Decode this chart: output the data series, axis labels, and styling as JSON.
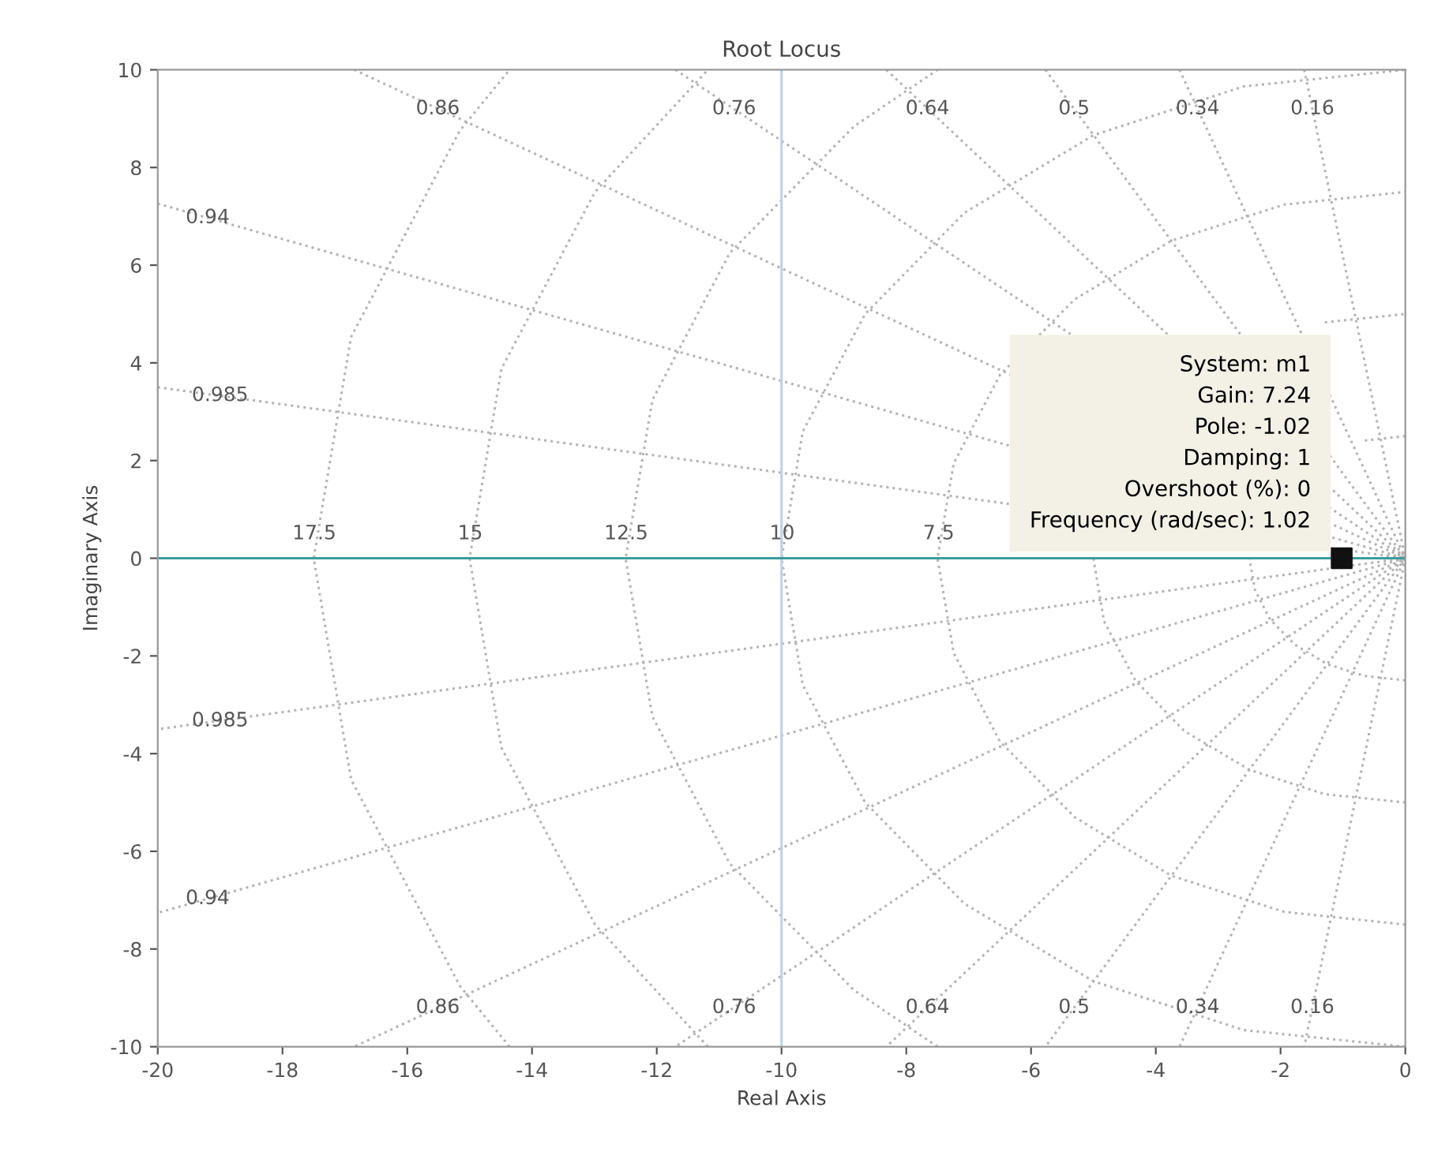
{
  "chart_data": {
    "type": "line",
    "title": "Root Locus",
    "xlabel": "Real Axis",
    "ylabel": "Imaginary Axis",
    "xlim": [
      -20,
      0
    ],
    "xticks": [
      -20,
      -18,
      -16,
      -14,
      -12,
      -10,
      -8,
      -6,
      -4,
      -2,
      0
    ],
    "ylim": [
      -10,
      10
    ],
    "yticks": [
      -10,
      -8,
      -6,
      -4,
      -2,
      0,
      2,
      4,
      6,
      8,
      10
    ],
    "grid": false,
    "legend": false,
    "series": [
      {
        "color": "#b4b4b4",
        "line_style": "dotted",
        "x": [
          -1.62,
          0,
          -1.62
        ],
        "values": [
          10,
          0,
          -10
        ]
      },
      {
        "color": "#b4b4b4",
        "line_style": "dotted",
        "x": [
          -3.62,
          0,
          -3.62
        ],
        "values": [
          10,
          0,
          -10
        ]
      },
      {
        "color": "#b4b4b4",
        "line_style": "dotted",
        "x": [
          -5.77,
          0,
          -5.77
        ],
        "values": [
          10,
          0,
          -10
        ]
      },
      {
        "color": "#b4b4b4",
        "line_style": "dotted",
        "x": [
          -8.32,
          0,
          -8.32
        ],
        "values": [
          10,
          0,
          -10
        ]
      },
      {
        "color": "#b4b4b4",
        "line_style": "dotted",
        "x": [
          -11.7,
          0,
          -11.7
        ],
        "values": [
          10,
          0,
          -10
        ]
      },
      {
        "color": "#b4b4b4",
        "line_style": "dotted",
        "x": [
          -16.85,
          0,
          -16.85
        ],
        "values": [
          10,
          0,
          -10
        ]
      },
      {
        "color": "#b4b4b4",
        "line_style": "dotted",
        "x": [
          -20,
          0,
          -20
        ],
        "values": [
          7.26,
          0,
          -7.26
        ]
      },
      {
        "color": "#b4b4b4",
        "line_style": "dotted",
        "x": [
          -20,
          0,
          -20
        ],
        "values": [
          3.5,
          0,
          -3.5
        ]
      },
      {
        "color": "#b4b4b4",
        "line_style": "dotted",
        "x": [
          0,
          -0.65,
          -1.25,
          -1.77,
          -2.17,
          -2.41,
          -2.5,
          -2.41,
          -2.17,
          -1.77,
          -1.25,
          -0.65,
          0
        ],
        "values": [
          -2.5,
          -2.41,
          -2.17,
          -1.77,
          -1.25,
          -0.65,
          0,
          null,
          null,
          null,
          null,
          2.41,
          2.5
        ]
      },
      {
        "color": "#b4b4b4",
        "line_style": "dotted",
        "x": [
          0,
          -1.29,
          -2.5,
          -3.54,
          -4.33,
          -4.83,
          -5,
          -4.83,
          -4.33,
          -3.54,
          -2.5,
          -1.29,
          0
        ],
        "values": [
          -5,
          -4.83,
          -4.33,
          -3.54,
          -2.5,
          -1.29,
          0,
          null,
          null,
          null,
          null,
          4.83,
          5
        ]
      },
      {
        "color": "#b4b4b4",
        "line_style": "dotted",
        "x": [
          0,
          -1.94,
          -3.75,
          -5.3,
          -6.5,
          -7.24,
          -7.5,
          -7.24,
          -6.5,
          -5.3,
          -3.75,
          -1.94,
          0
        ],
        "values": [
          -7.5,
          -7.24,
          -6.5,
          -5.3,
          -3.75,
          -1.94,
          0,
          1.94,
          3.75,
          5.3,
          6.5,
          7.24,
          7.5
        ]
      },
      {
        "color": "#b4b4b4",
        "line_style": "dotted",
        "x": [
          0,
          -2.59,
          -5,
          -7.07,
          -8.66,
          -9.66,
          -10,
          -9.66,
          -8.66,
          -7.07,
          -5,
          -2.59,
          0
        ],
        "values": [
          -10,
          -9.66,
          -8.66,
          -7.07,
          -5,
          -2.59,
          0,
          2.59,
          5,
          7.07,
          8.66,
          9.66,
          10
        ]
      },
      {
        "color": "#b4b4b4",
        "line_style": "dotted",
        "x": [
          -7.5,
          -8.84,
          -10.83,
          -12.07,
          -12.5,
          -12.07,
          -10.83,
          -8.84,
          -7.5
        ],
        "values": [
          -10,
          -8.84,
          -6.25,
          -3.24,
          0,
          3.24,
          6.25,
          8.84,
          10
        ]
      },
      {
        "color": "#b4b4b4",
        "line_style": "dotted",
        "x": [
          -11.18,
          -12.99,
          -14.49,
          -15,
          -14.49,
          -12.99,
          -11.18
        ],
        "values": [
          -10,
          -7.5,
          -3.88,
          0,
          3.88,
          7.5,
          10
        ]
      },
      {
        "color": "#b4b4b4",
        "line_style": "dotted",
        "x": [
          -14.36,
          -15.16,
          -16.9,
          -17.5,
          -16.9,
          -15.16,
          -14.36
        ],
        "values": [
          -10,
          -8.75,
          -4.53,
          0,
          4.53,
          8.75,
          10
        ]
      },
      {
        "color": "#b8d4ea",
        "line_style": "solid",
        "x": [
          -10,
          -10
        ],
        "values": [
          -10,
          10
        ]
      },
      {
        "color": "#3c9c9c",
        "line_style": "solid",
        "x": [
          -20,
          0
        ],
        "values": [
          0,
          0
        ]
      },
      {
        "type": "scatter",
        "color": "#111111",
        "marker": "square",
        "x": [
          -1.02
        ],
        "values": [
          0
        ]
      }
    ],
    "annotations": [
      {
        "text": "0.86",
        "x": -15.51,
        "y": 9.2
      },
      {
        "text": "0.76",
        "x": -10.76,
        "y": 9.2
      },
      {
        "text": "0.64",
        "x": -7.66,
        "y": 9.2
      },
      {
        "text": "0.5",
        "x": -5.31,
        "y": 9.2
      },
      {
        "text": "0.34",
        "x": -3.33,
        "y": 9.2
      },
      {
        "text": "0.16",
        "x": -1.49,
        "y": 9.2
      },
      {
        "text": "0.86",
        "x": -15.51,
        "y": -9.2
      },
      {
        "text": "0.76",
        "x": -10.76,
        "y": -9.2
      },
      {
        "text": "0.64",
        "x": -7.66,
        "y": -9.2
      },
      {
        "text": "0.5",
        "x": -5.31,
        "y": -9.2
      },
      {
        "text": "0.34",
        "x": -3.33,
        "y": -9.2
      },
      {
        "text": "0.16",
        "x": -1.49,
        "y": -9.2
      },
      {
        "text": "0.94",
        "x": -19.2,
        "y": 6.97
      },
      {
        "text": "0.985",
        "x": -19,
        "y": 3.33
      },
      {
        "text": "0.985",
        "x": -19,
        "y": -3.33
      },
      {
        "text": "0.94",
        "x": -19.2,
        "y": -6.97
      },
      {
        "text": "17.5",
        "x": -17.49,
        "y": 0.5
      },
      {
        "text": "15",
        "x": -14.99,
        "y": 0.5
      },
      {
        "text": "12.5",
        "x": -12.49,
        "y": 0.5
      },
      {
        "text": "10",
        "x": -9.99,
        "y": 0.5
      },
      {
        "text": "7.5",
        "x": -7.48,
        "y": 0.5
      },
      {
        "text": "System: m1\nGain: 7.24\nPole: -1.02\nDamping: 1\nOvershoot (%): 0\nFrequency (rad/sec): 1.02",
        "x": -1.02,
        "y": 0
      }
    ]
  }
}
